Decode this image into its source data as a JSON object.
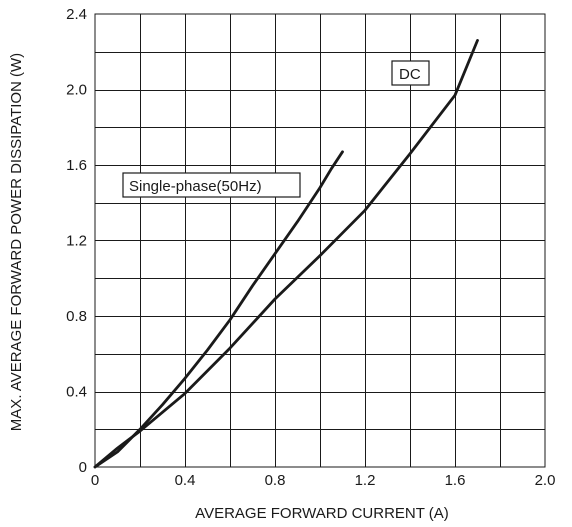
{
  "chart_data": {
    "type": "line",
    "title": "",
    "xlabel": "AVERAGE FORWARD CURRENT (A)",
    "ylabel": "MAX. AVERAGE FORWARD POWER DISSIPATION (W)",
    "xlim": [
      0,
      2.0
    ],
    "ylim": [
      0,
      2.4
    ],
    "x_major_ticks": [
      "0",
      "0.4",
      "0.8",
      "1.2",
      "1.6",
      "2.0"
    ],
    "y_major_ticks": [
      "0",
      "0.4",
      "0.8",
      "1.2",
      "1.6",
      "2.0",
      "2.4"
    ],
    "x_grid_step": 0.2,
    "y_grid_step": 0.2,
    "grid": true,
    "annotations": [
      {
        "text": "Single-phase(50Hz)",
        "series": "single_phase"
      },
      {
        "text": "DC",
        "series": "dc"
      }
    ],
    "series": [
      {
        "id": "single_phase",
        "x": [
          0,
          0.1,
          0.2,
          0.3,
          0.4,
          0.5,
          0.6,
          0.7,
          0.8,
          0.9,
          1.0,
          1.05,
          1.1
        ],
        "y": [
          0,
          0.08,
          0.2,
          0.33,
          0.47,
          0.62,
          0.78,
          0.96,
          1.13,
          1.3,
          1.48,
          1.58,
          1.67
        ]
      },
      {
        "id": "dc",
        "x": [
          0,
          0.1,
          0.2,
          0.4,
          0.6,
          0.8,
          1.0,
          1.2,
          1.4,
          1.6,
          1.7
        ],
        "y": [
          0,
          0.1,
          0.19,
          0.39,
          0.63,
          0.89,
          1.12,
          1.36,
          1.66,
          1.97,
          2.26
        ]
      }
    ]
  }
}
